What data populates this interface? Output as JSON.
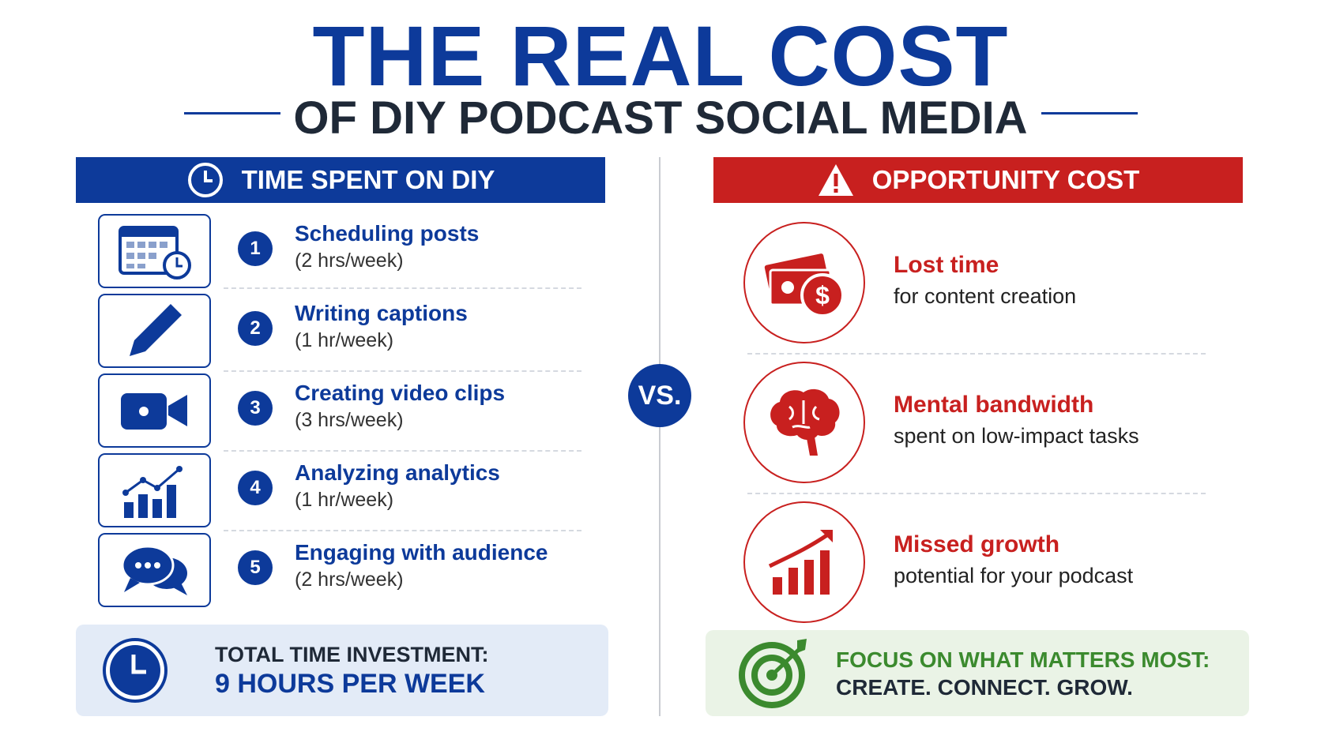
{
  "header": {
    "title": "THE REAL COST",
    "subtitle": "OF DIY PODCAST SOCIAL MEDIA"
  },
  "left": {
    "heading": "TIME SPENT ON DIY",
    "items": [
      {
        "number": 1,
        "title": "Scheduling posts",
        "detail": "(2 hrs/week)"
      },
      {
        "number": 2,
        "title": "Writing captions",
        "detail": "(1 hr/week)"
      },
      {
        "number": 3,
        "title": "Creating video clips",
        "detail": "(3 hrs/week)"
      },
      {
        "number": 4,
        "title": "Analyzing analytics",
        "detail": "(1 hr/week)"
      },
      {
        "number": 5,
        "title": "Engaging with audience",
        "detail": "(2 hrs/week)"
      }
    ],
    "total": {
      "label": "TOTAL TIME INVESTMENT:",
      "value": "9 HOURS PER WEEK"
    }
  },
  "divider": "VS.",
  "right": {
    "heading": "OPPORTUNITY COST",
    "items": [
      {
        "title": "Lost time",
        "detail": "for content creation"
      },
      {
        "title": "Mental bandwidth",
        "detail": "spent on low-impact tasks"
      },
      {
        "title": "Missed growth",
        "detail": "potential for your podcast"
      }
    ],
    "footer": {
      "line1": "FOCUS ON WHAT MATTERS MOST:",
      "line2": "CREATE. CONNECT. GROW."
    }
  }
}
